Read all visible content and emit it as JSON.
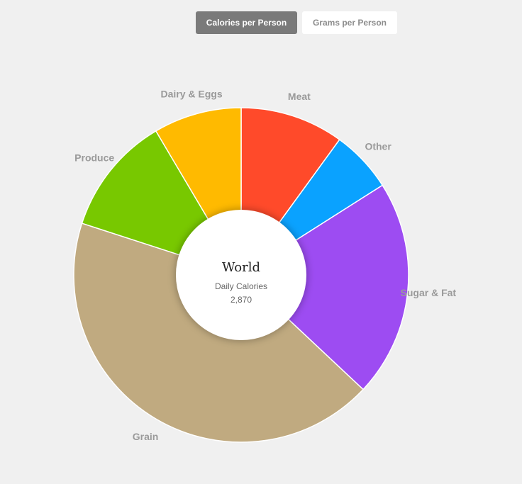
{
  "toggle": {
    "calories_label": "Calories per Person",
    "grams_label": "Grams per Person",
    "selected": "Calories per Person"
  },
  "center": {
    "title": "World",
    "subtitle": "Daily Calories",
    "value": "2,870"
  },
  "chart_data": {
    "type": "pie",
    "donut": true,
    "unit": "calories per person per day",
    "total": 2870,
    "slices": [
      {
        "label": "Meat",
        "value": 287,
        "color": "#ff4a2a"
      },
      {
        "label": "Other",
        "value": 172,
        "color": "#0aa2ff"
      },
      {
        "label": "Sugar & Fat",
        "value": 603,
        "color": "#9d4cf2"
      },
      {
        "label": "Grain",
        "value": 1234,
        "color": "#c0aa80"
      },
      {
        "label": "Produce",
        "value": 330,
        "color": "#78c800"
      },
      {
        "label": "Dairy & Eggs",
        "value": 244,
        "color": "#ffba00"
      }
    ]
  }
}
